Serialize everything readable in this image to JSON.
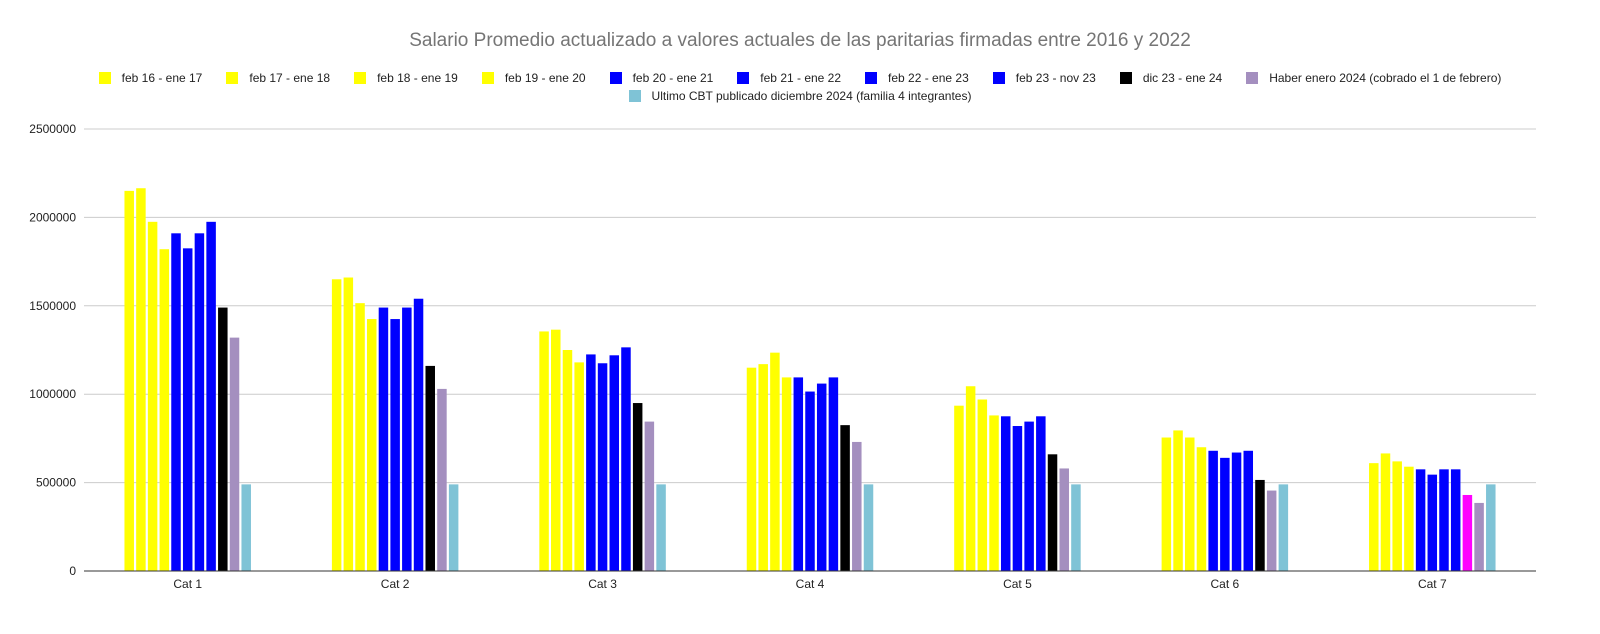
{
  "chart_data": {
    "type": "bar",
    "title": "Salario Promedio actualizado a valores actuales de las paritarias firmadas entre 2016 y 2022",
    "xlabel": "",
    "ylabel": "",
    "ylim": [
      0,
      2500000
    ],
    "yticks": [
      "0",
      "500000",
      "1000000",
      "1500000",
      "2000000",
      "2500000"
    ],
    "grid": true,
    "legend_position": "top",
    "categories": [
      "Cat 1",
      "Cat 2",
      "Cat 3",
      "Cat 4",
      "Cat 5",
      "Cat 6",
      "Cat 7"
    ],
    "series": [
      {
        "name": "feb 16 - ene 17",
        "color": "#ffff00",
        "values": [
          2150000,
          1650000,
          1355000,
          1150000,
          935000,
          755000,
          610000
        ]
      },
      {
        "name": "feb 17 - ene 18",
        "color": "#ffff00",
        "values": [
          2165000,
          1660000,
          1365000,
          1170000,
          1045000,
          795000,
          665000
        ]
      },
      {
        "name": "feb 18 - ene 19",
        "color": "#ffff00",
        "values": [
          1975000,
          1515000,
          1250000,
          1235000,
          970000,
          755000,
          620000
        ]
      },
      {
        "name": "feb 19 - ene 20",
        "color": "#ffff00",
        "values": [
          1820000,
          1425000,
          1180000,
          1095000,
          880000,
          700000,
          590000
        ]
      },
      {
        "name": "feb 20 - ene 21",
        "color": "#0000ff",
        "values": [
          1910000,
          1490000,
          1225000,
          1095000,
          875000,
          680000,
          575000
        ]
      },
      {
        "name": "feb 21 - ene 22",
        "color": "#0000ff",
        "values": [
          1825000,
          1425000,
          1175000,
          1015000,
          820000,
          640000,
          545000
        ]
      },
      {
        "name": "feb 22 - ene 23",
        "color": "#0000ff",
        "values": [
          1910000,
          1490000,
          1220000,
          1060000,
          845000,
          670000,
          575000
        ]
      },
      {
        "name": "feb 23 - nov 23",
        "color": "#0000ff",
        "values": [
          1975000,
          1540000,
          1265000,
          1095000,
          875000,
          680000,
          575000
        ]
      },
      {
        "name": "dic 23 - ene 24",
        "color": "#000000",
        "values": [
          1490000,
          1160000,
          950000,
          825000,
          660000,
          515000,
          430000
        ],
        "point_colors": [
          null,
          null,
          null,
          null,
          null,
          null,
          "#ff00ff"
        ]
      },
      {
        "name": "Haber enero 2024 (cobrado el 1 de febrero)",
        "color": "#a48fbf",
        "values": [
          1320000,
          1030000,
          845000,
          730000,
          580000,
          455000,
          385000
        ]
      },
      {
        "name": "Ultimo CBT publicado diciembre 2024 (familia 4 integrantes)",
        "color": "#7fc3d6",
        "values": [
          490000,
          490000,
          490000,
          490000,
          490000,
          490000,
          490000
        ]
      }
    ]
  }
}
